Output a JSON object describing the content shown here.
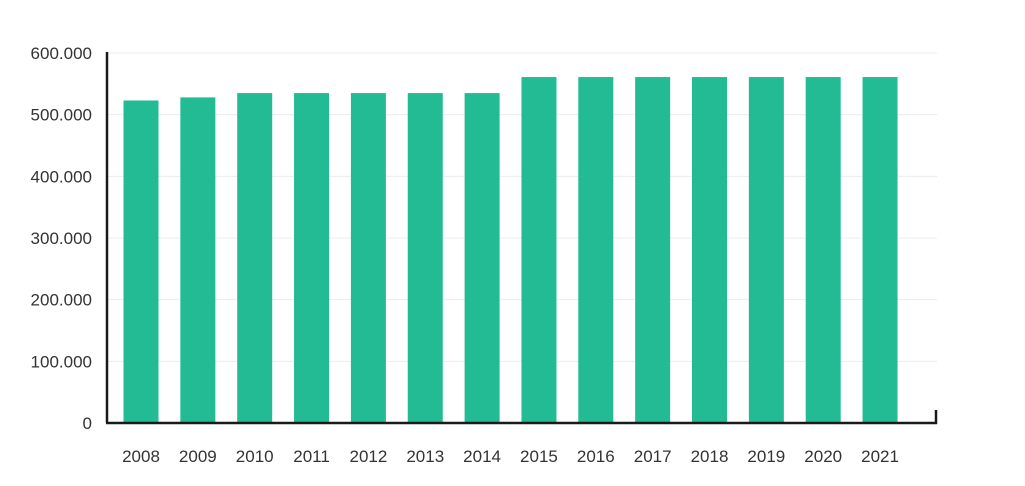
{
  "chart_data": {
    "type": "bar",
    "categories": [
      "2008",
      "2009",
      "2010",
      "2011",
      "2012",
      "2013",
      "2014",
      "2015",
      "2016",
      "2017",
      "2018",
      "2019",
      "2020",
      "2021"
    ],
    "values": [
      523000,
      528000,
      535000,
      535000,
      535000,
      535000,
      535000,
      561000,
      561000,
      561000,
      561000,
      561000,
      561000,
      561000
    ],
    "ylim": [
      0,
      600000
    ],
    "yticks": [
      0,
      100000,
      200000,
      300000,
      400000,
      500000,
      600000
    ],
    "ytick_labels": [
      "0",
      "100.000",
      "200.000",
      "300.000",
      "400.000",
      "500.000",
      "600.000"
    ],
    "grid": true,
    "legend": "none",
    "bar_color": "#22bb94",
    "grid_color": "#ececec",
    "axis_color": "#1a1a1a",
    "title": "",
    "xlabel": "",
    "ylabel": ""
  }
}
